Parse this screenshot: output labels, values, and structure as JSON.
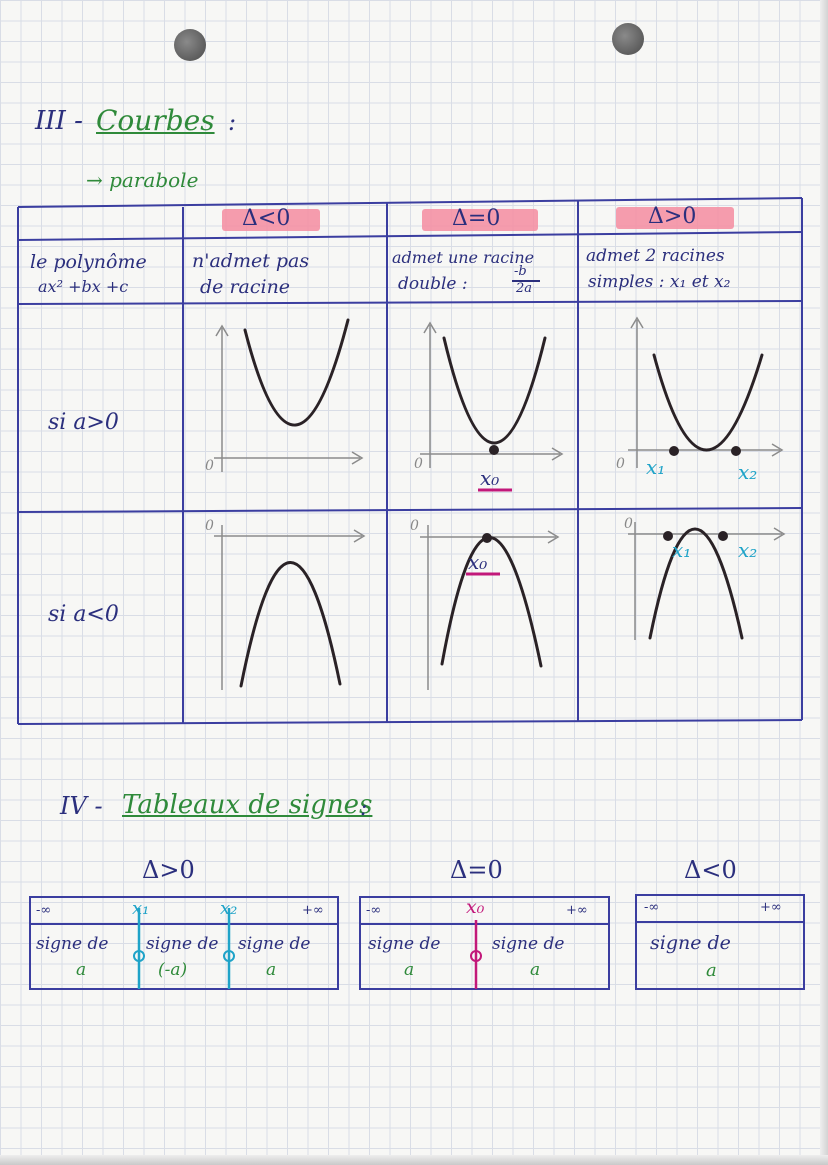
{
  "section3": {
    "number": "III -",
    "title": "Courbes",
    "colon": ":",
    "subtitle": "→ parabole"
  },
  "table": {
    "headers": [
      "Δ<0",
      "Δ=0",
      "Δ>0"
    ],
    "row_header": [
      "le polynôme",
      "ax² +bx +c"
    ],
    "descriptions": [
      [
        "n'admet pas",
        "de racine"
      ],
      [
        "admet une racine",
        "double :"
      ],
      [
        "admet 2 racines",
        "simples : x₁ et x₂"
      ]
    ],
    "fraction": {
      "num": "-b",
      "den": "2a"
    },
    "row_a_pos": "si a>0",
    "row_a_neg": "si a<0",
    "origin": "0",
    "x0": "x₀",
    "x1": "x₁",
    "x2": "x₂"
  },
  "section4": {
    "number": "IV -",
    "title": "Tableaux de signes",
    "colon": ":"
  },
  "sign_tables": [
    {
      "title": "Δ>0",
      "bounds": [
        "-∞",
        "x₁",
        "x₂",
        "+∞"
      ],
      "cells": [
        [
          "signe de",
          "a"
        ],
        [
          "signe de",
          "(-a)"
        ],
        [
          "signe de",
          "a"
        ]
      ]
    },
    {
      "title": "Δ=0",
      "bounds": [
        "-∞",
        "x₀",
        "+∞"
      ],
      "cells": [
        [
          "signe de",
          "a"
        ],
        [
          "signe de",
          "a"
        ]
      ]
    },
    {
      "title": "Δ<0",
      "bounds": [
        "-∞",
        "+∞"
      ],
      "cells": [
        [
          "signe de",
          "a"
        ]
      ]
    }
  ],
  "colors": {
    "ink_navy": "#2b2f7d",
    "title_green": "#2f8a3a",
    "table_blue": "#3b3ea0",
    "highlight_pink": "#f48ca0",
    "accent_cyan": "#1fa3c8",
    "accent_magenta": "#c2187a"
  }
}
